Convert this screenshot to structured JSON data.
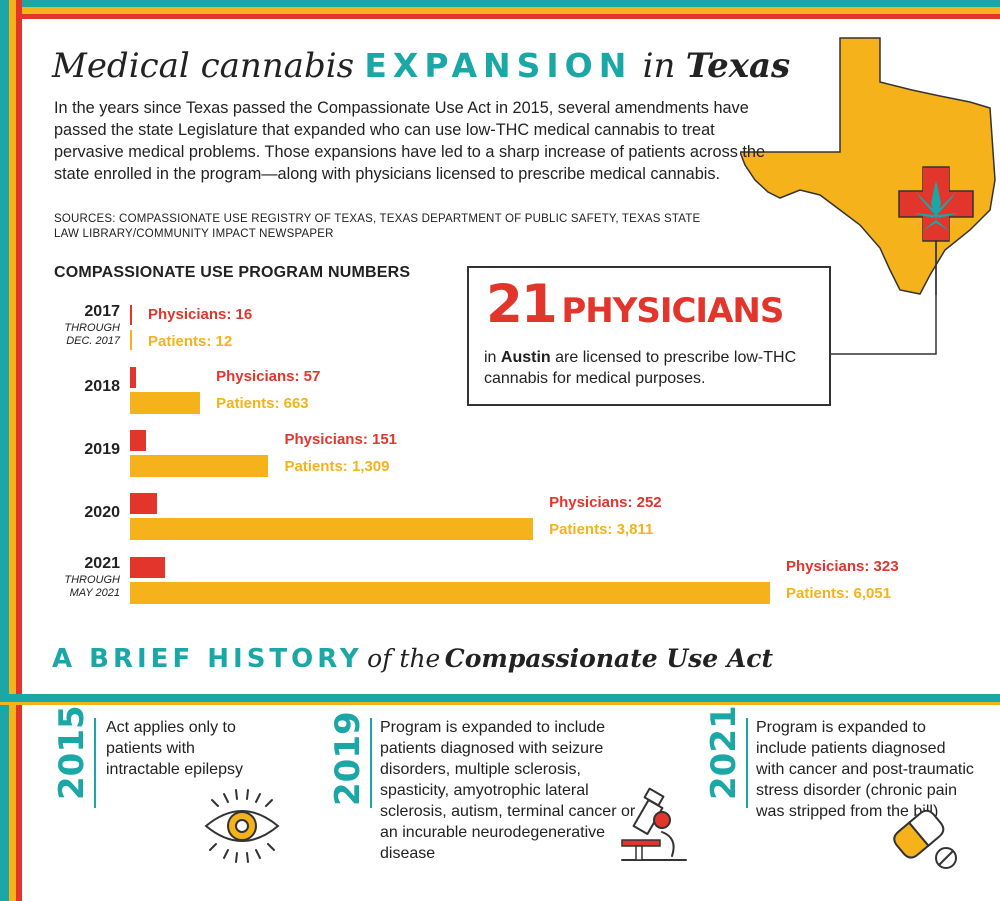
{
  "title": {
    "part1": "Medical cannabis",
    "part2": "EXPANSION",
    "part3": "in",
    "part4": "Texas"
  },
  "intro": "In the years since Texas passed the Compassionate Use Act in 2015, several amendments have passed the state Legislature that expanded who can use low-THC medical cannabis to treat pervasive medical problems. Those expansions have led to a sharp increase of patients across the state enrolled in the program—along with physicians licensed to prescribe medical cannabis.",
  "sources": "SOURCES: COMPASSIONATE USE REGISTRY OF TEXAS, TEXAS DEPARTMENT OF PUBLIC SAFETY, TEXAS STATE LAW LIBRARY/COMMUNITY IMPACT NEWSPAPER",
  "colors": {
    "teal": "#1aa7a6",
    "gold": "#f5b21b",
    "red": "#e2352c",
    "orange_map": "#f5b21b"
  },
  "callout": {
    "number": "21",
    "word": "PHYSICIANS",
    "text_prefix": "in",
    "city": "Austin",
    "text_suffix": "are licensed to prescribe low-THC cannabis for medical purposes."
  },
  "map_icon": "texas-map-with-medical-cross-cannabis-leaf",
  "chart_data": {
    "type": "bar",
    "title": "COMPASSIONATE USE PROGRAM NUMBERS",
    "categories": [
      "2017",
      "2018",
      "2019",
      "2020",
      "2021"
    ],
    "category_notes": [
      "THROUGH DEC. 2017",
      "",
      "",
      "",
      "THROUGH MAY 2021"
    ],
    "series": [
      {
        "name": "Physicians",
        "values": [
          16,
          57,
          151,
          252,
          323
        ],
        "color": "#e2352c",
        "labels": [
          "Physicians: 16",
          "Physicians: 57",
          "Physicians: 151",
          "Physicians: 252",
          "Physicians: 323"
        ]
      },
      {
        "name": "Patients",
        "values": [
          12,
          663,
          1309,
          3811,
          6051
        ],
        "color": "#f5b21b",
        "labels": [
          "Patients: 12",
          "Patients: 663",
          "Patients: 1,309",
          "Patients: 3,811",
          "Patients: 6,051"
        ]
      }
    ],
    "orientation": "horizontal"
  },
  "history": {
    "title_part1": "A BRIEF HISTORY",
    "title_part2": "of the",
    "title_part3": "Compassionate Use Act",
    "items": [
      {
        "year": "2015",
        "text": "Act applies only to patients with intractable epilepsy",
        "icon": "eye-icon"
      },
      {
        "year": "2019",
        "text": "Program is expanded to include patients diagnosed with seizure disorders, multiple sclerosis, spasticity, amyotrophic lateral sclerosis, autism, terminal cancer or an incurable neurodegenerative disease",
        "icon": "microscope-icon"
      },
      {
        "year": "2021",
        "text": "Program is expanded to include patients diagnosed with cancer and post-traumatic stress disorder (chronic pain was stripped from the bill)",
        "icon": "pill-capsule-icon"
      }
    ]
  }
}
